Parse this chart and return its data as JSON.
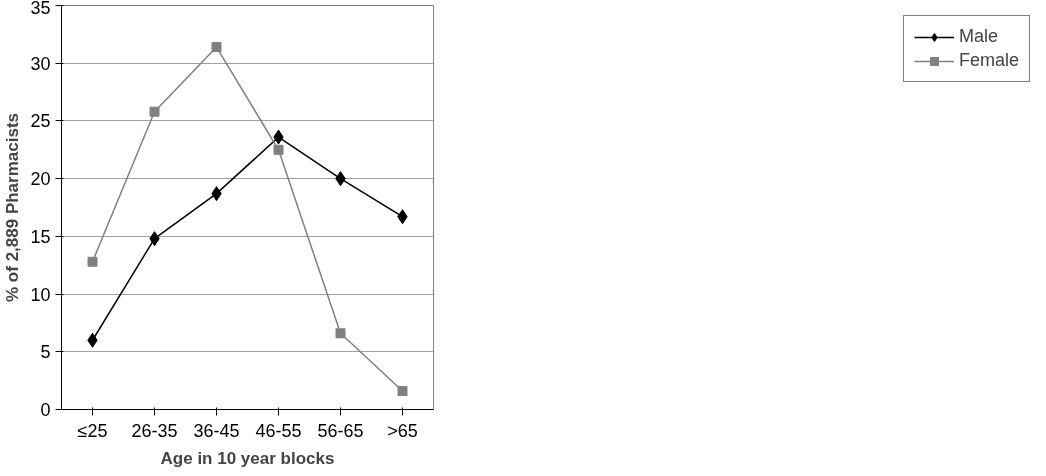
{
  "chart_data": {
    "type": "line",
    "xlabel": "Age in 10 year blocks",
    "ylabel": "% of 2,889 Pharmacists",
    "categories": [
      "≤25",
      "26-35",
      "36-45",
      "46-55",
      "56-65",
      ">65"
    ],
    "ylim": [
      0,
      35
    ],
    "yticks": [
      0,
      5,
      10,
      15,
      20,
      25,
      30,
      35
    ],
    "grid": "y",
    "legend": "right",
    "line_style": "solid",
    "series": [
      {
        "name": "Male",
        "color": "#000000",
        "marker": "diamond",
        "values": [
          6.0,
          14.8,
          18.7,
          23.6,
          20.0,
          16.7
        ]
      },
      {
        "name": "Female",
        "color": "#808080",
        "marker": "square",
        "values": [
          12.8,
          25.8,
          31.4,
          22.5,
          6.6,
          1.6
        ]
      }
    ]
  }
}
